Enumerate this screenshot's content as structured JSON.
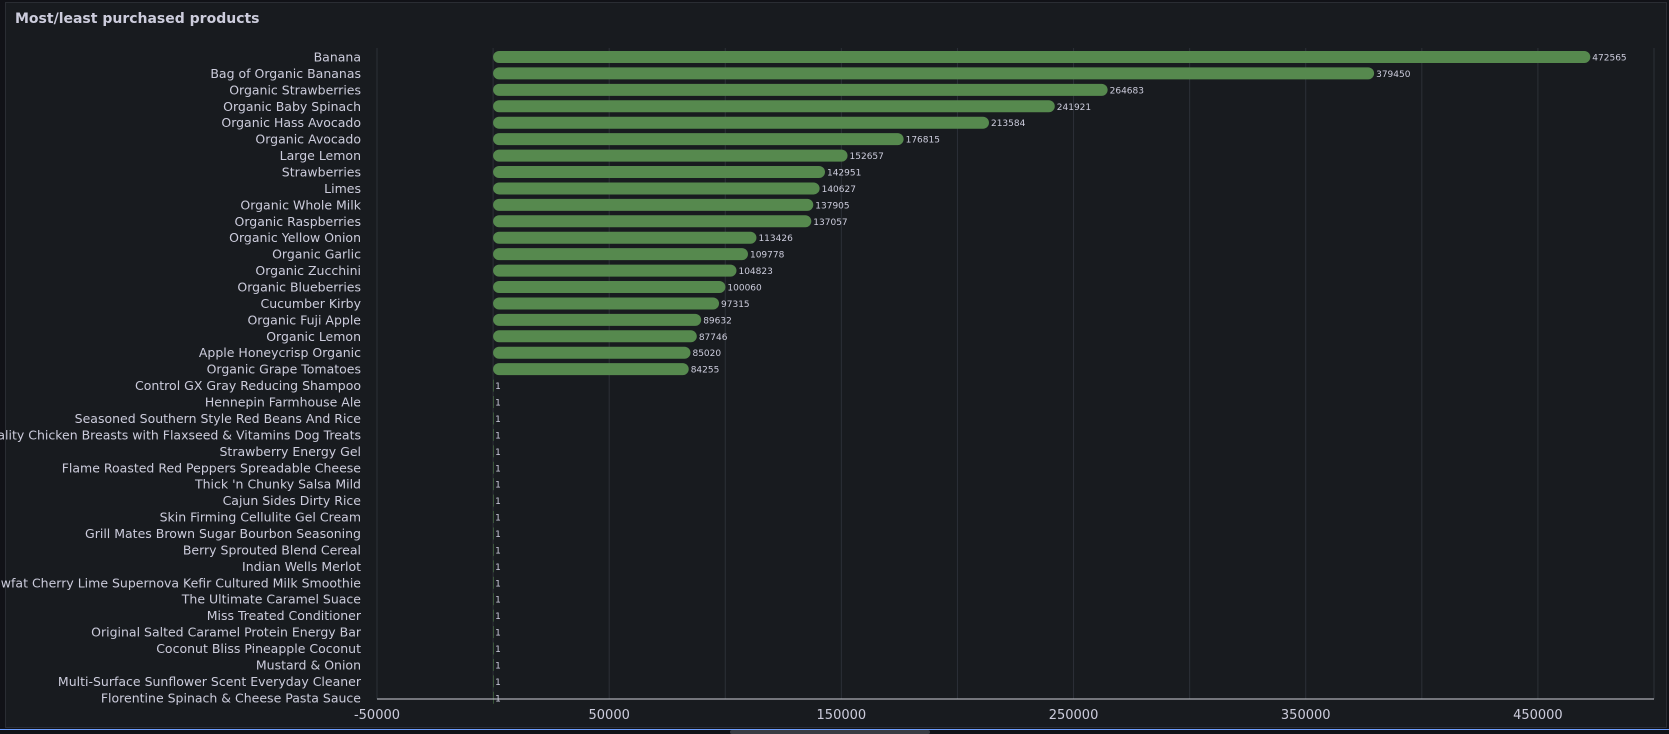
{
  "panel": {
    "title": "Most/least purchased products"
  },
  "colors": {
    "bar": "#56894e",
    "text": "#ccccdc",
    "grid": "#2c3037",
    "axis": "#cfd1d8"
  },
  "chart_data": {
    "type": "bar",
    "orientation": "horizontal",
    "title": "",
    "xlabel": "",
    "ylabel": "",
    "xlim": [
      -50000,
      500000
    ],
    "x_ticks": [
      -50000,
      50000,
      150000,
      250000,
      350000,
      450000
    ],
    "grid": true,
    "categories": [
      "Banana",
      "Bag of Organic Bananas",
      "Organic Strawberries",
      "Organic Baby Spinach",
      "Organic Hass Avocado",
      "Organic Avocado",
      "Large Lemon",
      "Strawberries",
      "Limes",
      "Organic Whole Milk",
      "Organic Raspberries",
      "Organic Yellow Onion",
      "Organic Garlic",
      "Organic Zucchini",
      "Organic Blueberries",
      "Cucumber Kirby",
      "Organic Fuji Apple",
      "Organic Lemon",
      "Apple Honeycrisp Organic",
      "Organic Grape Tomatoes",
      "Control GX Gray Reducing Shampoo",
      "Hennepin Farmhouse Ale",
      "Seasoned Southern Style Red Beans And Rice",
      "Vitality Chicken Breasts with Flaxseed & Vitamins Dog Treats",
      "Strawberry Energy Gel",
      "Flame Roasted Red Peppers Spreadable Cheese",
      "Thick 'n Chunky Salsa Mild",
      "Cajun Sides Dirty Rice",
      "Skin Firming Cellulite Gel Cream",
      "Grill Mates Brown Sugar Bourbon Seasoning",
      "Berry Sprouted Blend Cereal",
      "Indian Wells Merlot",
      "Lowfat Cherry Lime Supernova Kefir Cultured Milk Smoothie",
      "The Ultimate Caramel Suace",
      "Miss Treated Conditioner",
      "Original Salted Caramel Protein Energy Bar",
      "Coconut Bliss Pineapple Coconut",
      "Mustard & Onion",
      "Multi-Surface Sunflower Scent Everyday Cleaner",
      "Florentine Spinach & Cheese Pasta Sauce"
    ],
    "values": [
      472565,
      379450,
      264683,
      241921,
      213584,
      176815,
      152657,
      142951,
      140627,
      137905,
      137057,
      113426,
      109778,
      104823,
      100060,
      97315,
      89632,
      87746,
      85020,
      84255,
      1,
      1,
      1,
      1,
      1,
      1,
      1,
      1,
      1,
      1,
      1,
      1,
      1,
      1,
      1,
      1,
      1,
      1,
      1,
      1
    ]
  }
}
